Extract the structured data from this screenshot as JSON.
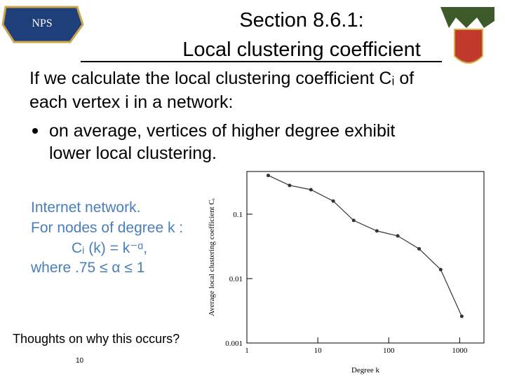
{
  "title": [
    "Section 8.6.1:",
    "Local clustering coefficient"
  ],
  "intro": [
    "If we calculate the local clustering coefficient Cᵢ of",
    "each vertex i in a network:"
  ],
  "bullet": [
    "on average, vertices of higher degree exhibit",
    "lower local clustering."
  ],
  "note": [
    "Internet network.",
    "For nodes of degree k :",
    "Cᵢ (k) = k⁻ᵅ,",
    "where  .75 ≤ α ≤ 1"
  ],
  "footer": "Thoughts on why this occurs?",
  "page_number": "10",
  "chart_data": {
    "type": "line",
    "x_label": "Degree k",
    "y_label": "Average local clustering coefficient Cᵢ",
    "x": [
      2,
      4,
      8,
      16.5,
      32,
      68,
      134,
      268,
      540,
      1070
    ],
    "values": [
      0.4,
      0.28,
      0.24,
      0.16,
      0.08,
      0.055,
      0.046,
      0.029,
      0.0138,
      0.0026
    ],
    "color": "#333333",
    "log_x": true,
    "log_y": true,
    "xlim": [
      1,
      2200
    ],
    "ylim": [
      0.001,
      0.46
    ],
    "xticks": [
      1,
      10,
      100,
      1000
    ],
    "yticks": [
      0.001,
      0.01,
      0.1
    ]
  }
}
